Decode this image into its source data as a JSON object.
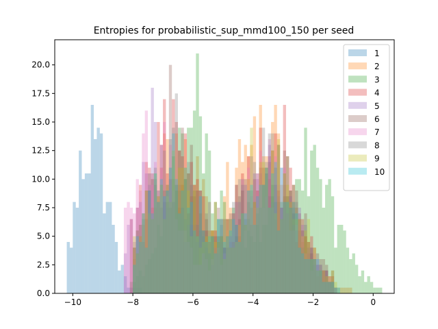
{
  "chart_data": {
    "type": "histogram",
    "title": "Entropies for probabilistic_sup_mmd100_150 per seed",
    "xlabel": "",
    "ylabel": "",
    "xlim": [
      -10.6,
      0.7
    ],
    "ylim": [
      0,
      22.2
    ],
    "x_ticks": [
      -10,
      -8,
      -6,
      -4,
      -2,
      0
    ],
    "x_tick_labels": [
      "−10",
      "−8",
      "−6",
      "−4",
      "−2",
      "0"
    ],
    "y_ticks": [
      0,
      2.5,
      5,
      7.5,
      10,
      12.5,
      15,
      17.5,
      20
    ],
    "y_tick_labels": [
      "0.0",
      "2.5",
      "5.0",
      "7.5",
      "10.0",
      "12.5",
      "15.0",
      "17.5",
      "20.0"
    ],
    "grid": false,
    "legend_position": "top-right",
    "bar_opacity": 0.3,
    "bin_width": 0.1,
    "series": [
      {
        "name": "1",
        "color": "#1f77b4",
        "peaks": [
          [
            -9.4,
            16.5,
            0.5
          ]
        ],
        "range": [
          -10.2,
          -7.8
        ],
        "max_x": -9.4,
        "max_y": 16.5
      },
      {
        "name": "2",
        "color": "#ff7f0e",
        "peaks": [
          [
            -6.7,
            13,
            0.9
          ],
          [
            -3.8,
            15.5,
            1.0
          ]
        ],
        "range": [
          -8.0,
          -0.8
        ],
        "max_x": -3.3,
        "max_y": 16.5
      },
      {
        "name": "3",
        "color": "#2ca02c",
        "peaks": [
          [
            -6.0,
            15,
            0.9
          ],
          [
            -2.5,
            13,
            1.1
          ]
        ],
        "range": [
          -8.1,
          0.2
        ],
        "max_x": -5.9,
        "max_y": 21.0
      },
      {
        "name": "4",
        "color": "#d62728",
        "peaks": [
          [
            -6.9,
            15,
            0.9
          ],
          [
            -3.6,
            13.5,
            1.0
          ]
        ],
        "range": [
          -8.1,
          -1.4
        ],
        "max_x": -3.0,
        "max_y": 16.5
      },
      {
        "name": "5",
        "color": "#9467bd",
        "peaks": [
          [
            -7.2,
            14,
            0.8
          ],
          [
            -3.6,
            12,
            1.0
          ]
        ],
        "range": [
          -8.3,
          -1.3
        ],
        "max_x": -7.4,
        "max_y": 18.0
      },
      {
        "name": "6",
        "color": "#8c564b",
        "peaks": [
          [
            -6.6,
            14,
            0.9
          ],
          [
            -3.4,
            12,
            1.0
          ]
        ],
        "range": [
          -8.0,
          -1.4
        ],
        "max_x": -6.8,
        "max_y": 20.0
      },
      {
        "name": "7",
        "color": "#e377c2",
        "peaks": [
          [
            -7.3,
            14,
            0.8
          ],
          [
            -3.6,
            12,
            1.0
          ]
        ],
        "range": [
          -8.3,
          -1.3
        ],
        "max_x": -7.6,
        "max_y": 16.0
      },
      {
        "name": "8",
        "color": "#7f7f7f",
        "peaks": [
          [
            -6.8,
            13,
            0.9
          ],
          [
            -3.6,
            12.5,
            1.0
          ]
        ],
        "range": [
          -8.0,
          -1.3
        ],
        "max_x": -6.6,
        "max_y": 17.5
      },
      {
        "name": "9",
        "color": "#bcbd22",
        "peaks": [
          [
            -6.8,
            12,
            0.9
          ],
          [
            -3.4,
            12,
            1.0
          ]
        ],
        "range": [
          -8.0,
          -1.3
        ],
        "max_x": -4.1,
        "max_y": 14.5
      },
      {
        "name": "10",
        "color": "#17becf",
        "peaks": [
          [
            -6.7,
            12,
            0.9
          ],
          [
            -3.6,
            11,
            1.0
          ]
        ],
        "range": [
          -8.0,
          -1.2
        ],
        "max_x": -6.7,
        "max_y": 14.0
      }
    ]
  }
}
